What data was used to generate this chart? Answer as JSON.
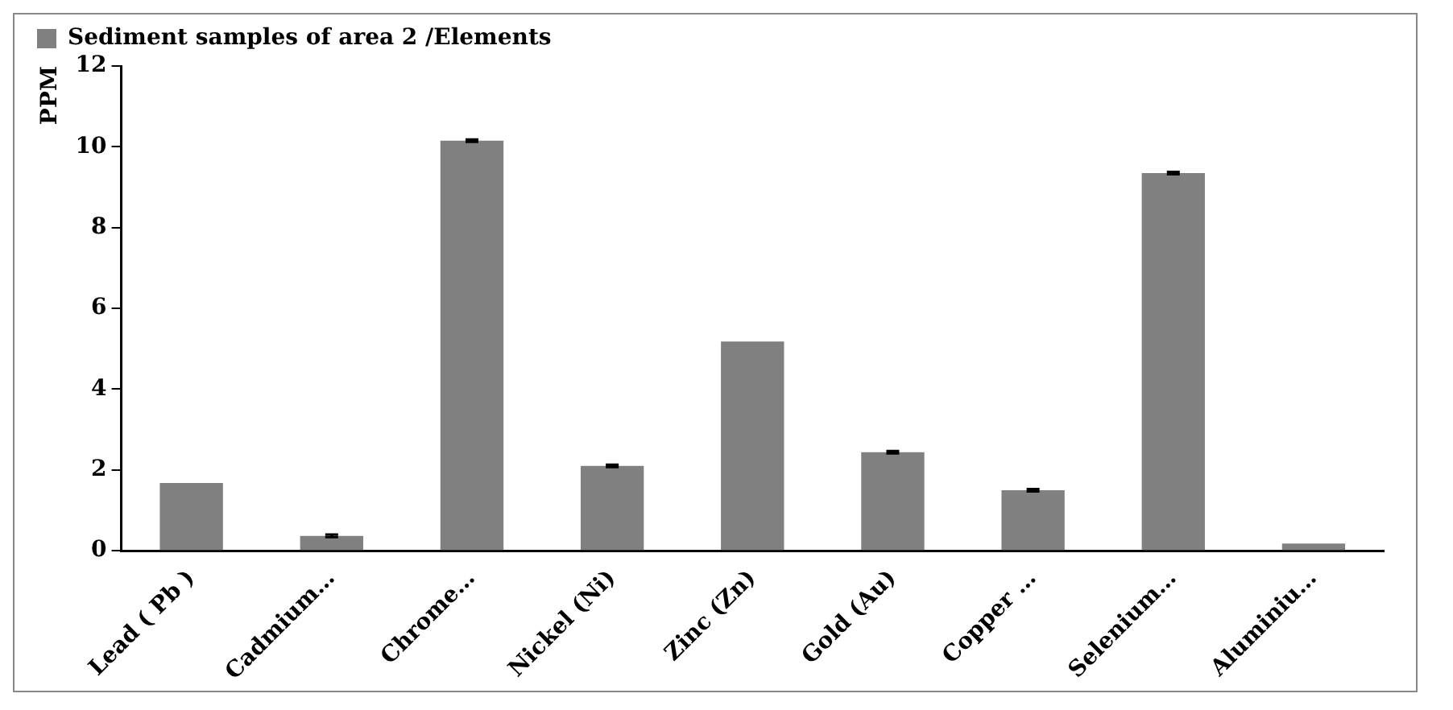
{
  "chart_data": {
    "type": "bar",
    "ylabel": "PPM",
    "categories": [
      "Lead ( Pb )",
      "Cadmium…",
      "Chrome…",
      "Nickel (Ni)",
      "Zinc (Zn)",
      "Gold (Au)",
      "Copper …",
      "Selenium…",
      "Aluminiu…"
    ],
    "series": [
      {
        "name": "Sediment samples of area 2 /Elements",
        "color": "#808080",
        "values": [
          1.68,
          0.37,
          10.15,
          2.1,
          5.18,
          2.44,
          1.5,
          9.35,
          0.18
        ],
        "errors": [
          null,
          0.03,
          0.03,
          0.03,
          null,
          0.03,
          0.03,
          0.03,
          null
        ]
      }
    ],
    "ylim": [
      0,
      12
    ],
    "yticks": [
      0,
      2,
      4,
      6,
      8,
      10,
      12
    ],
    "grid": false,
    "legend": "top"
  }
}
